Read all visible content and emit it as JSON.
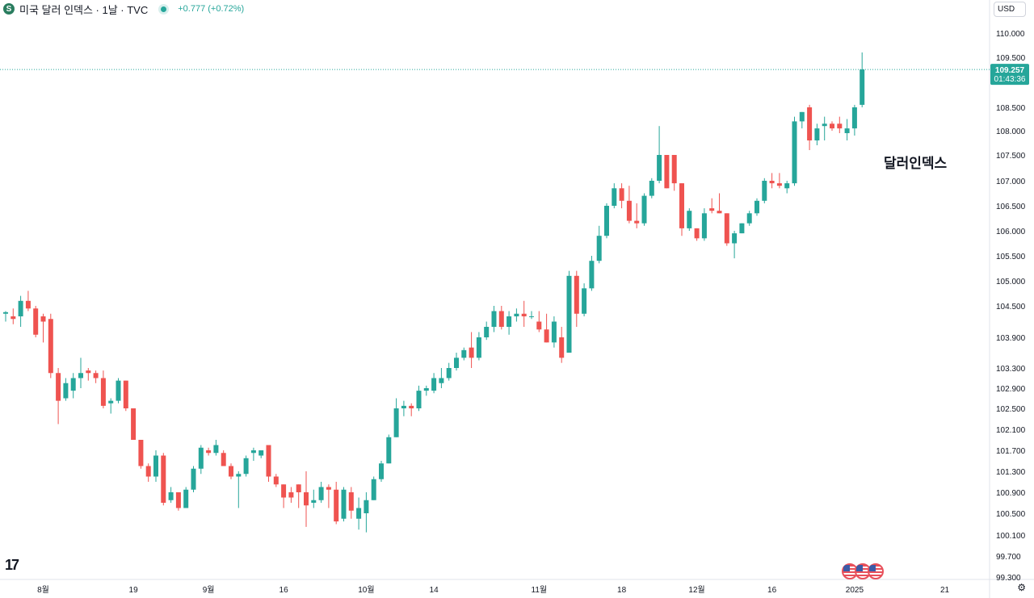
{
  "header": {
    "symbol_icon": "S",
    "title": "미국 달러 인덱스 · 1날 · TVC",
    "change": "+0.777 (+0.72%)"
  },
  "currency": "USD",
  "annotation": "달러인덱스",
  "tv_logo": "17",
  "settings_icon": "gear-icon",
  "colors": {
    "up": "#26a69a",
    "down": "#ef5350",
    "axis_text": "#131722"
  },
  "chart_data": {
    "type": "candlestick",
    "title": "미국 달러 인덱스 · 1날 · TVC",
    "ylim": [
      99.3,
      110.7
    ],
    "y_ticks": [
      "110.000",
      "109.500",
      "108.500",
      "108.000",
      "107.500",
      "107.000",
      "106.500",
      "106.000",
      "105.500",
      "105.000",
      "104.500",
      "103.900",
      "103.300",
      "102.900",
      "102.500",
      "102.100",
      "101.700",
      "101.300",
      "100.900",
      "100.500",
      "100.100",
      "99.700",
      "99.300"
    ],
    "y_tick_values": [
      110.0,
      109.5,
      108.5,
      108.0,
      107.5,
      107.0,
      106.5,
      106.0,
      105.5,
      105.0,
      104.5,
      103.9,
      103.3,
      102.9,
      102.5,
      102.1,
      101.7,
      101.3,
      100.9,
      100.5,
      100.1,
      99.7,
      99.3
    ],
    "x_labels": [
      {
        "label": "8월",
        "index": 5
      },
      {
        "label": "19",
        "index": 17
      },
      {
        "label": "9월",
        "index": 27
      },
      {
        "label": "16",
        "index": 37
      },
      {
        "label": "10월",
        "index": 48
      },
      {
        "label": "14",
        "index": 57
      },
      {
        "label": "11월",
        "index": 71
      },
      {
        "label": "18",
        "index": 82
      },
      {
        "label": "12월",
        "index": 92
      },
      {
        "label": "16",
        "index": 102
      },
      {
        "label": "2025",
        "index": 113
      },
      {
        "label": "21",
        "index": 125
      }
    ],
    "last_price": "109.257",
    "countdown": "01:43:36",
    "candles": [
      [
        104.35,
        104.4,
        104.2,
        104.38
      ],
      [
        104.3,
        104.45,
        104.15,
        104.25
      ],
      [
        104.3,
        104.7,
        104.1,
        104.6
      ],
      [
        104.6,
        104.8,
        104.4,
        104.45
      ],
      [
        104.45,
        104.5,
        103.9,
        103.95
      ],
      [
        104.3,
        104.35,
        103.8,
        104.2
      ],
      [
        104.25,
        104.35,
        103.1,
        103.2
      ],
      [
        103.2,
        103.3,
        102.2,
        102.65
      ],
      [
        102.7,
        103.1,
        102.65,
        103.0
      ],
      [
        102.85,
        103.2,
        102.7,
        103.1
      ],
      [
        103.1,
        103.5,
        102.9,
        103.2
      ],
      [
        103.25,
        103.3,
        103.05,
        103.2
      ],
      [
        103.2,
        103.25,
        103.0,
        103.1
      ],
      [
        103.1,
        103.25,
        102.5,
        102.55
      ],
      [
        102.6,
        102.7,
        102.4,
        102.65
      ],
      [
        102.65,
        103.1,
        102.6,
        103.05
      ],
      [
        103.05,
        103.05,
        102.45,
        102.5
      ],
      [
        102.5,
        102.5,
        101.9,
        101.9
      ],
      [
        101.9,
        101.9,
        101.35,
        101.4
      ],
      [
        101.4,
        101.45,
        101.1,
        101.2
      ],
      [
        101.2,
        101.7,
        101.1,
        101.6
      ],
      [
        101.6,
        101.65,
        100.65,
        100.7
      ],
      [
        100.75,
        101.0,
        100.7,
        100.9
      ],
      [
        100.9,
        100.9,
        100.55,
        100.6
      ],
      [
        100.6,
        101.0,
        100.6,
        100.95
      ],
      [
        100.95,
        101.4,
        100.9,
        101.35
      ],
      [
        101.35,
        101.8,
        101.25,
        101.75
      ],
      [
        101.7,
        101.75,
        101.6,
        101.65
      ],
      [
        101.65,
        101.9,
        101.6,
        101.8
      ],
      [
        101.65,
        101.7,
        101.4,
        101.4
      ],
      [
        101.4,
        101.45,
        101.15,
        101.2
      ],
      [
        101.2,
        101.3,
        100.6,
        101.25
      ],
      [
        101.25,
        101.6,
        101.2,
        101.55
      ],
      [
        101.65,
        101.75,
        101.5,
        101.7
      ],
      [
        101.6,
        101.7,
        101.55,
        101.7
      ],
      [
        101.8,
        101.8,
        101.1,
        101.2
      ],
      [
        101.2,
        101.25,
        101.0,
        101.05
      ],
      [
        101.05,
        101.05,
        100.6,
        100.8
      ],
      [
        100.9,
        101.0,
        100.7,
        100.8
      ],
      [
        101.05,
        101.05,
        100.6,
        100.9
      ],
      [
        100.9,
        101.3,
        100.25,
        100.65
      ],
      [
        100.7,
        100.95,
        100.6,
        100.75
      ],
      [
        100.75,
        101.1,
        100.7,
        101.0
      ],
      [
        101.0,
        101.05,
        100.6,
        100.95
      ],
      [
        100.95,
        101.1,
        100.3,
        100.35
      ],
      [
        100.4,
        101.0,
        100.35,
        100.95
      ],
      [
        100.9,
        101.0,
        100.4,
        100.55
      ],
      [
        100.4,
        100.8,
        100.2,
        100.6
      ],
      [
        100.5,
        100.9,
        100.15,
        100.75
      ],
      [
        100.75,
        101.2,
        100.75,
        101.15
      ],
      [
        101.15,
        101.5,
        101.1,
        101.45
      ],
      [
        101.45,
        102.0,
        101.45,
        101.95
      ],
      [
        101.95,
        102.7,
        101.95,
        102.5
      ],
      [
        102.5,
        102.65,
        102.35,
        102.55
      ],
      [
        102.55,
        102.6,
        102.35,
        102.5
      ],
      [
        102.5,
        102.95,
        102.45,
        102.85
      ],
      [
        102.85,
        102.95,
        102.75,
        102.9
      ],
      [
        102.85,
        103.2,
        102.8,
        103.1
      ],
      [
        103.0,
        103.3,
        102.9,
        103.1
      ],
      [
        103.1,
        103.4,
        103.05,
        103.3
      ],
      [
        103.3,
        103.6,
        103.25,
        103.5
      ],
      [
        103.5,
        103.7,
        103.45,
        103.65
      ],
      [
        103.7,
        104.0,
        103.3,
        103.5
      ],
      [
        103.5,
        104.0,
        103.45,
        103.9
      ],
      [
        103.9,
        104.2,
        103.85,
        104.1
      ],
      [
        104.1,
        104.5,
        104.0,
        104.4
      ],
      [
        104.4,
        104.5,
        104.05,
        104.1
      ],
      [
        104.1,
        104.4,
        103.95,
        104.3
      ],
      [
        104.3,
        104.45,
        104.2,
        104.35
      ],
      [
        104.35,
        104.6,
        104.1,
        104.3
      ],
      [
        104.3,
        104.4,
        104.25,
        104.3
      ],
      [
        104.2,
        104.4,
        104.0,
        104.05
      ],
      [
        104.05,
        104.35,
        103.8,
        103.8
      ],
      [
        103.8,
        104.3,
        103.7,
        104.2
      ],
      [
        103.9,
        104.1,
        103.4,
        103.5
      ],
      [
        103.6,
        105.2,
        103.6,
        105.1
      ],
      [
        105.1,
        105.2,
        104.1,
        104.35
      ],
      [
        104.35,
        104.95,
        104.3,
        104.85
      ],
      [
        104.85,
        105.5,
        104.8,
        105.4
      ],
      [
        105.4,
        106.1,
        105.35,
        105.9
      ],
      [
        105.9,
        106.55,
        105.85,
        106.5
      ],
      [
        106.5,
        106.95,
        106.45,
        106.85
      ],
      [
        106.85,
        106.95,
        106.45,
        106.6
      ],
      [
        106.6,
        106.9,
        106.15,
        106.2
      ],
      [
        106.2,
        106.55,
        106.05,
        106.15
      ],
      [
        106.15,
        106.75,
        106.1,
        106.7
      ],
      [
        106.7,
        107.05,
        106.65,
        107.0
      ],
      [
        107.0,
        108.1,
        106.95,
        107.5
      ],
      [
        107.5,
        107.5,
        106.85,
        106.85
      ],
      [
        107.5,
        107.5,
        106.8,
        106.95
      ],
      [
        106.95,
        106.95,
        105.9,
        106.05
      ],
      [
        106.05,
        106.45,
        106.0,
        106.4
      ],
      [
        106.05,
        106.05,
        105.8,
        105.85
      ],
      [
        105.85,
        106.45,
        105.8,
        106.35
      ],
      [
        106.45,
        106.65,
        106.35,
        106.4
      ],
      [
        106.4,
        106.75,
        106.35,
        106.35
      ],
      [
        106.35,
        106.35,
        105.7,
        105.75
      ],
      [
        105.75,
        106.0,
        105.45,
        105.95
      ],
      [
        105.95,
        106.15,
        105.95,
        106.15
      ],
      [
        106.15,
        106.4,
        106.1,
        106.35
      ],
      [
        106.35,
        106.65,
        106.3,
        106.6
      ],
      [
        106.6,
        107.05,
        106.55,
        107.0
      ],
      [
        107.0,
        107.15,
        106.85,
        106.95
      ],
      [
        106.95,
        107.15,
        106.85,
        106.9
      ],
      [
        106.85,
        107.0,
        106.75,
        106.95
      ],
      [
        106.95,
        108.3,
        106.9,
        108.2
      ],
      [
        108.2,
        108.4,
        108.05,
        108.4
      ],
      [
        108.5,
        108.55,
        107.6,
        107.8
      ],
      [
        107.8,
        108.15,
        107.7,
        108.05
      ],
      [
        108.1,
        108.3,
        107.8,
        108.15
      ],
      [
        108.15,
        108.2,
        108.0,
        108.05
      ],
      [
        108.15,
        108.3,
        107.95,
        108.05
      ],
      [
        107.95,
        108.25,
        107.8,
        108.05
      ],
      [
        108.05,
        108.55,
        107.9,
        108.5
      ],
      [
        108.55,
        109.6,
        108.5,
        109.257
      ]
    ]
  }
}
